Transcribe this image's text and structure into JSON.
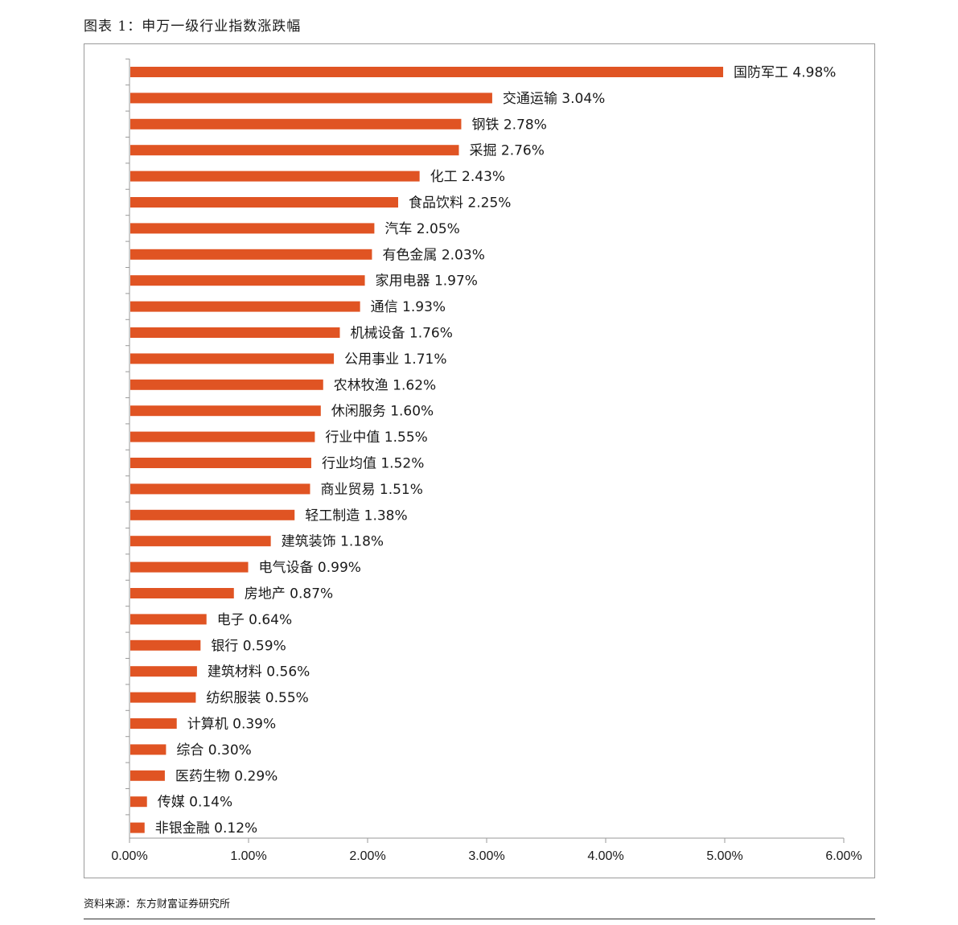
{
  "header": {
    "title": "图表 1：申万一级行业指数涨跌幅"
  },
  "footer": {
    "source": "资料来源：东方财富证券研究所"
  },
  "chart_data": {
    "type": "bar",
    "orientation": "horizontal",
    "bar_color": "#e05423",
    "categories": [
      "国防军工",
      "交通运输",
      "钢铁",
      "采掘",
      "化工",
      "食品饮料",
      "汽车",
      "有色金属",
      "家用电器",
      "通信",
      "机械设备",
      "公用事业",
      "农林牧渔",
      "休闲服务",
      "行业中值",
      "行业均值",
      "商业贸易",
      "轻工制造",
      "建筑装饰",
      "电气设备",
      "房地产",
      "电子",
      "银行",
      "建筑材料",
      "纺织服装",
      "计算机",
      "综合",
      "医药生物",
      "传媒",
      "非银金融"
    ],
    "values": [
      4.98,
      3.04,
      2.78,
      2.76,
      2.43,
      2.25,
      2.05,
      2.03,
      1.97,
      1.93,
      1.76,
      1.71,
      1.62,
      1.6,
      1.55,
      1.52,
      1.51,
      1.38,
      1.18,
      0.99,
      0.87,
      0.64,
      0.59,
      0.56,
      0.55,
      0.39,
      0.3,
      0.29,
      0.14,
      0.12
    ],
    "data_labels": [
      "4.98%",
      "3.04%",
      "2.78%",
      "2.76%",
      "2.43%",
      "2.25%",
      "2.05%",
      "2.03%",
      "1.97%",
      "1.93%",
      "1.76%",
      "1.71%",
      "1.62%",
      "1.60%",
      "1.55%",
      "1.52%",
      "1.51%",
      "1.38%",
      "1.18%",
      "0.99%",
      "0.87%",
      "0.64%",
      "0.59%",
      "0.56%",
      "0.55%",
      "0.39%",
      "0.30%",
      "0.29%",
      "0.14%",
      "0.12%"
    ],
    "xlim": [
      0,
      6
    ],
    "xticks": [
      0,
      1,
      2,
      3,
      4,
      5,
      6
    ],
    "xtick_labels": [
      "0.00%",
      "1.00%",
      "2.00%",
      "3.00%",
      "4.00%",
      "5.00%",
      "6.00%"
    ],
    "grid": false,
    "legend": "none"
  }
}
